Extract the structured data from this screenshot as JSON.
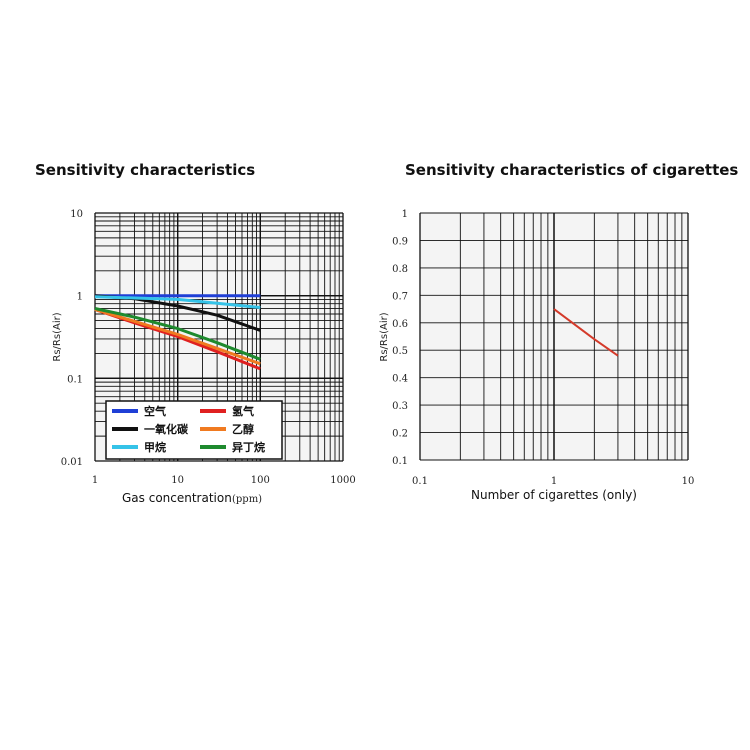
{
  "chart_data": [
    {
      "type": "line",
      "title": "Sensitivity characteristics",
      "xlabel": "Gas concentration",
      "xlabel_unit": "ppm",
      "ylabel": "Rs/Rs(Air)",
      "x_scale": "log",
      "y_scale": "log",
      "xlim": [
        1,
        1000
      ],
      "ylim": [
        0.01,
        10
      ],
      "x_ticks": [
        "1",
        "10",
        "100",
        "1000"
      ],
      "y_ticks": [
        "10",
        "1",
        "0.1",
        "0.01"
      ],
      "grid": true,
      "legend_position": "bottom-left",
      "series": [
        {
          "name": "空气",
          "color": "#1f3fd6",
          "x": [
            1,
            10,
            100
          ],
          "y": [
            1.0,
            1.0,
            1.0
          ]
        },
        {
          "name": "氢气",
          "color": "#e02020",
          "x": [
            1,
            3,
            10,
            30,
            100
          ],
          "y": [
            0.68,
            0.47,
            0.32,
            0.21,
            0.13
          ]
        },
        {
          "name": "一氧化碳",
          "color": "#111111",
          "x": [
            1,
            3,
            10,
            30,
            100
          ],
          "y": [
            1.0,
            0.92,
            0.75,
            0.58,
            0.38
          ]
        },
        {
          "name": "乙醇",
          "color": "#f07a20",
          "x": [
            1,
            3,
            10,
            30,
            100
          ],
          "y": [
            0.68,
            0.49,
            0.34,
            0.23,
            0.15
          ]
        },
        {
          "name": "甲烷",
          "color": "#35c3e8",
          "x": [
            1,
            10,
            100
          ],
          "y": [
            0.97,
            0.9,
            0.72
          ]
        },
        {
          "name": "异丁烷",
          "color": "#1e8a2e",
          "x": [
            1,
            3,
            10,
            30,
            100
          ],
          "y": [
            0.7,
            0.55,
            0.4,
            0.27,
            0.17
          ]
        }
      ]
    },
    {
      "type": "line",
      "title": "Sensitivity characteristics of cigarettes",
      "xlabel": "Number of cigarettes (only)",
      "ylabel": "Rs/Rs(Air)",
      "x_scale": "log",
      "y_scale": "linear",
      "xlim": [
        0.1,
        10
      ],
      "ylim": [
        0.1,
        1
      ],
      "x_ticks": [
        "0.1",
        "1",
        "10"
      ],
      "y_ticks": [
        "1",
        "0.9",
        "0.8",
        "0.7",
        "0.6",
        "0.5",
        "0.4",
        "0.3",
        "0.2",
        "0.1"
      ],
      "grid": true,
      "series": [
        {
          "color": "#d43a2a",
          "x": [
            1,
            2,
            3
          ],
          "y": [
            0.65,
            0.54,
            0.48
          ]
        }
      ]
    }
  ]
}
